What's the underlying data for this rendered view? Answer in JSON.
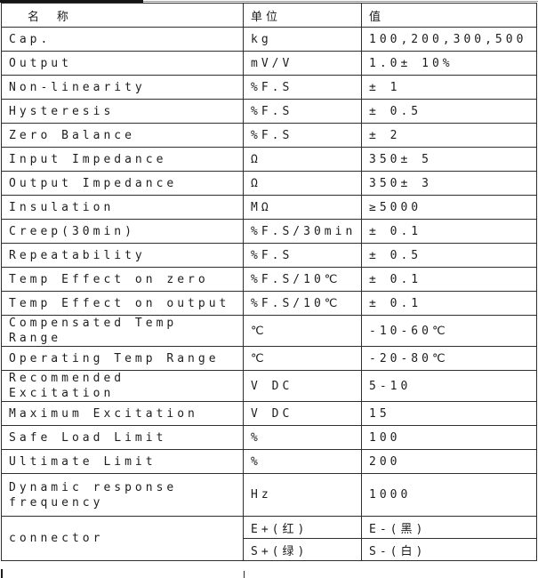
{
  "colors": {
    "line": "#2e2e2e",
    "text": "#1d1d1d",
    "topbar": "#151515",
    "background": "#ffffff"
  },
  "table": {
    "columns": [
      {
        "key": "name",
        "label": "名  称"
      },
      {
        "key": "unit",
        "label": "单位"
      },
      {
        "key": "value",
        "label": "值"
      }
    ],
    "rows": [
      {
        "name": "Cap.",
        "unit": "kg",
        "value": "100,200,300,500"
      },
      {
        "name": "Output",
        "unit": "mV/V",
        "value": "1.0± 10%"
      },
      {
        "name": "Non-linearity",
        "unit": "%F.S",
        "value": "± 1"
      },
      {
        "name": "Hysteresis",
        "unit": "%F.S",
        "value": "± 0.5"
      },
      {
        "name": "Zero Balance",
        "unit": "%F.S",
        "value": "± 2"
      },
      {
        "name": "Input Impedance",
        "unit": "Ω",
        "value": "350± 5"
      },
      {
        "name": "Output  Impedance",
        "unit": "Ω",
        "value": "350± 3"
      },
      {
        "name": "Insulation",
        "unit": "MΩ",
        "value": "≥5000"
      },
      {
        "name": "Creep(30min)",
        "unit": "%F.S/30min",
        "value": "± 0.1"
      },
      {
        "name": "Repeatability",
        "unit": "%F.S",
        "value": "± 0.5"
      },
      {
        "name": "Temp Effect on zero",
        "unit": "%F.S/10℃",
        "value": "± 0.1"
      },
      {
        "name": "Temp Effect on output",
        "unit": "%F.S/10℃",
        "value": "± 0.1"
      },
      {
        "name": "Compensated Temp Range",
        "unit": "℃",
        "value": "-10-60℃"
      },
      {
        "name": "Operating Temp Range",
        "unit": "℃",
        "value": "-20-80℃"
      },
      {
        "name": "Recommended Excitation",
        "unit": "V DC",
        "value": "5-10"
      },
      {
        "name": "Maximum Excitation",
        "unit": "V DC",
        "value": "15"
      },
      {
        "name": "Safe Load Limit",
        "unit": "%",
        "value": "100"
      },
      {
        "name": "Ultimate Limit",
        "unit": "%",
        "value": "200"
      },
      {
        "name": "Dynamic response\nfrequency",
        "unit": "Hz",
        "value": "1000"
      }
    ],
    "connector": {
      "name": "connector",
      "rows": [
        {
          "unit": "E+(红)",
          "value": "E-(黑)"
        },
        {
          "unit": "S+(绿)",
          "value": "S-(白)"
        }
      ]
    }
  }
}
